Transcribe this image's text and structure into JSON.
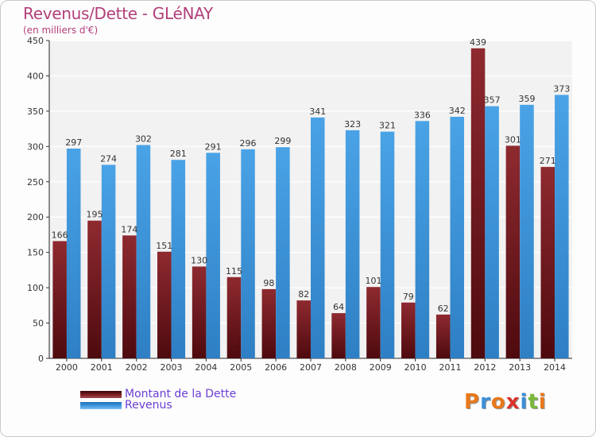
{
  "header": {
    "title": "Revenus/Dette - GLéNAY",
    "subtitle": "(en milliers d'€)"
  },
  "legend": {
    "debt_label": "Montant de la Dette",
    "revenue_label": "Revenus"
  },
  "logo": {
    "text": "Proxiti",
    "letters": [
      "P",
      "r",
      "o",
      "x",
      "i",
      "t",
      "i"
    ]
  },
  "colors": {
    "debt": "#7a1c22",
    "revenue": "#3d96dc",
    "title": "#b3407a",
    "legend_text": "#6a3fd2"
  },
  "chart_data": {
    "type": "bar",
    "title": "Revenus/Dette - GLéNAY",
    "subtitle": "(en milliers d'€)",
    "categories": [
      "2000",
      "2001",
      "2002",
      "2003",
      "2004",
      "2005",
      "2006",
      "2007",
      "2008",
      "2009",
      "2010",
      "2011",
      "2012",
      "2013",
      "2014"
    ],
    "series": [
      {
        "name": "Montant de la Dette",
        "values": [
          166,
          195,
          174,
          151,
          130,
          115,
          98,
          82,
          64,
          101,
          79,
          62,
          439,
          301,
          271
        ]
      },
      {
        "name": "Revenus",
        "values": [
          297,
          274,
          302,
          281,
          291,
          296,
          299,
          341,
          323,
          321,
          336,
          342,
          357,
          359,
          373
        ]
      }
    ],
    "ylim": [
      0,
      450
    ],
    "yticks": [
      0,
      50,
      100,
      150,
      200,
      250,
      300,
      350,
      400,
      450
    ],
    "grid": true,
    "legend_position": "bottom-left"
  }
}
